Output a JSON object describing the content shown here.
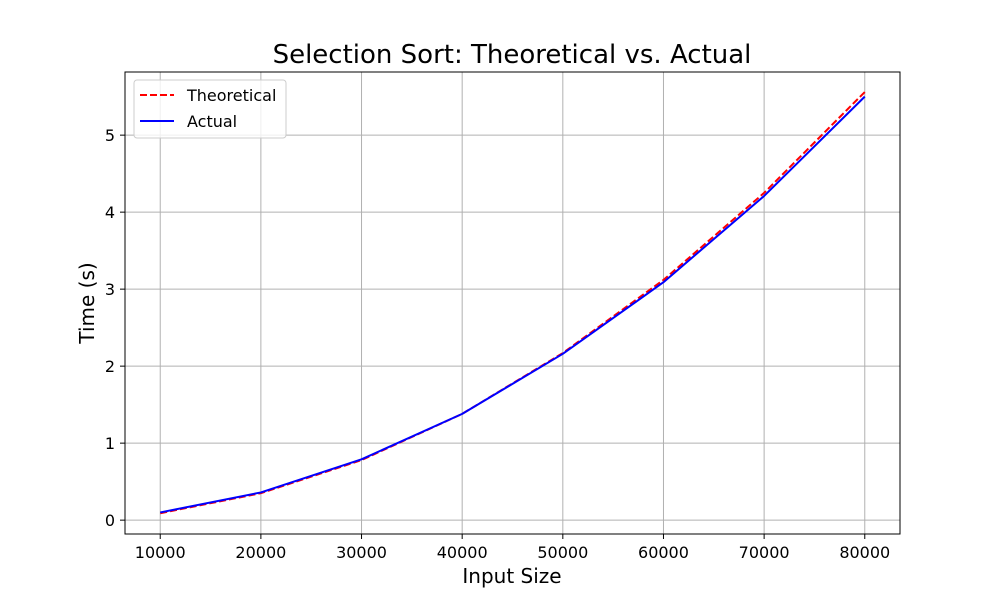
{
  "chart_data": {
    "type": "line",
    "title": "Selection Sort: Theoretical vs. Actual",
    "xlabel": "Input Size",
    "ylabel": "Time (s)",
    "x": [
      10000,
      20000,
      30000,
      40000,
      50000,
      60000,
      70000,
      80000
    ],
    "xlim": [
      6500,
      83500
    ],
    "ylim": [
      -0.18,
      5.82
    ],
    "xticks": [
      10000,
      20000,
      30000,
      40000,
      50000,
      60000,
      70000,
      80000
    ],
    "yticks": [
      0,
      1,
      2,
      3,
      4,
      5
    ],
    "grid": true,
    "legend_position": "top-left",
    "series": [
      {
        "name": "Theoretical",
        "color": "#ff0000",
        "style": "dashed",
        "values": [
          0.09,
          0.35,
          0.78,
          1.38,
          2.17,
          3.12,
          4.25,
          5.56
        ]
      },
      {
        "name": "Actual",
        "color": "#0000ff",
        "style": "solid",
        "values": [
          0.1,
          0.36,
          0.79,
          1.38,
          2.16,
          3.09,
          4.21,
          5.5
        ]
      }
    ]
  }
}
